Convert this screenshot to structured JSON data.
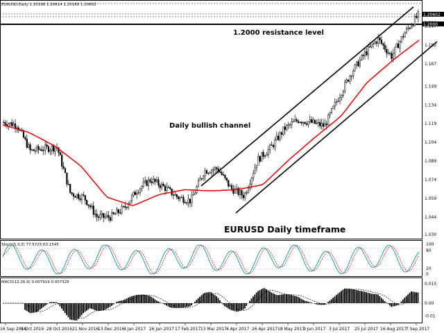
{
  "header": {
    "main": "EURUSD,Daily  1.20198 1.20614 1.20169 1.20602",
    "stoch": "Stoch(5,3,3) 77.5725 63.1545",
    "macd": "MACD(12,26,9) 0.007919 0.007325"
  },
  "annotations": {
    "resistance": "1.2000 resistance level",
    "channel": "Daily bullish channel",
    "timeframe": "EURUSD Daily timeframe"
  },
  "price_axis": [
    "1.206",
    "1.200",
    "1.197",
    "1.182",
    "1.167",
    "1.149",
    "1.134",
    "1.119",
    "1.104",
    "1.089",
    "1.074",
    "1.059",
    "1.044",
    "1.030"
  ],
  "price_current": "1.20602",
  "price_resistance": "1.2000",
  "stoch_axis": [
    "100",
    "80",
    "20",
    "0"
  ],
  "macd_axis": [
    "0.015",
    "0.00",
    "-0.01"
  ],
  "date_axis": [
    "16 Sep 2016",
    "6 Oct 2016",
    "28 Oct 2016",
    "21 Nov 2016",
    "13 Dec 2016",
    "4 Jan 2017",
    "26 Jan 2017",
    "17 Feb 2017",
    "13 Mar 2017",
    "4 Apr 2017",
    "26 Apr 2017",
    "18 May 2017",
    "9 Jun 2017",
    "3 Jul 2017",
    "25 Jul 2017",
    "16 Aug 2017",
    "7 Sep 2017"
  ],
  "colors": {
    "candle": "#000000",
    "ma": "#e00000",
    "stoch_main": "#20a0a0",
    "stoch_signal": "#e00000",
    "grid": "#999999"
  },
  "chart_data": {
    "type": "line",
    "title": "EURUSD Daily",
    "series": [
      {
        "name": "close",
        "x": [
          "16 Sep 2016",
          "6 Oct 2016",
          "17 Oct 2016",
          "28 Oct 2016",
          "8 Nov 2016",
          "21 Nov 2016",
          "2 Dec 2016",
          "13 Dec 2016",
          "23 Dec 2016",
          "4 Jan 2017",
          "15 Jan 2017",
          "26 Jan 2017",
          "6 Feb 2017",
          "17 Feb 2017",
          "1 Mar 2017",
          "13 Mar 2017",
          "23 Mar 2017",
          "4 Apr 2017",
          "15 Apr 2017",
          "26 Apr 2017",
          "7 May 2017",
          "18 May 2017",
          "29 May 2017",
          "9 Jun 2017",
          "20 Jun 2017",
          "3 Jul 2017",
          "14 Jul 2017",
          "25 Jul 2017",
          "5 Aug 2017",
          "16 Aug 2017",
          "27 Aug 2017",
          "7 Sep 2017"
        ],
        "y": [
          1.12,
          1.118,
          1.097,
          1.099,
          1.1,
          1.063,
          1.06,
          1.044,
          1.044,
          1.051,
          1.066,
          1.074,
          1.068,
          1.06,
          1.057,
          1.081,
          1.083,
          1.067,
          1.061,
          1.09,
          1.1,
          1.115,
          1.122,
          1.12,
          1.117,
          1.139,
          1.16,
          1.175,
          1.187,
          1.173,
          1.192,
          1.206
        ]
      },
      {
        "name": "MA",
        "x": [
          "16 Sep 2016",
          "6 Oct 2016",
          "28 Oct 2016",
          "21 Nov 2016",
          "13 Dec 2016",
          "4 Jan 2017",
          "26 Jan 2017",
          "17 Feb 2017",
          "13 Mar 2017",
          "4 Apr 2017",
          "26 Apr 2017",
          "18 May 2017",
          "9 Jun 2017",
          "3 Jul 2017",
          "25 Jul 2017",
          "16 Aug 2017",
          "7 Sep 2017"
        ],
        "y": [
          1.118,
          1.112,
          1.101,
          1.085,
          1.06,
          1.053,
          1.062,
          1.066,
          1.065,
          1.066,
          1.07,
          1.09,
          1.108,
          1.125,
          1.152,
          1.17,
          1.186
        ]
      }
    ],
    "ylim": [
      1.03,
      1.206
    ],
    "lines": {
      "resistance": 1.2
    }
  }
}
